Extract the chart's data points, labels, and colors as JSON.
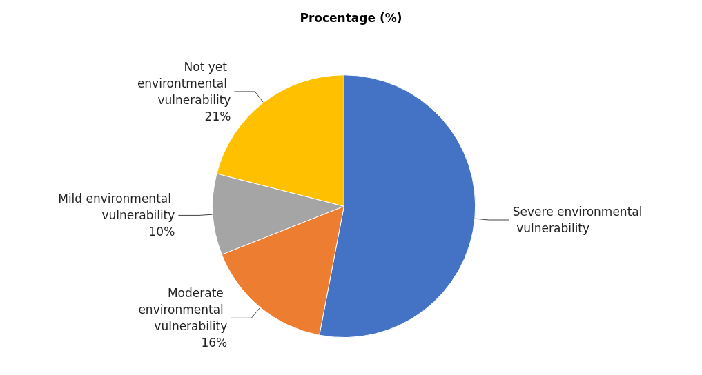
{
  "chart_data": {
    "type": "pie",
    "title": "Procentage (%)",
    "categories": [
      "Severe environmental vulnerability",
      "Moderate environmental vulnerability",
      "Mild environmental vulnerability",
      "Not yet environtmental vulnerability"
    ],
    "values": [
      53,
      16,
      10,
      21
    ],
    "value_labels": [
      null,
      "16%",
      "10%",
      "21%"
    ],
    "colors": [
      "#4472c4",
      "#ed7d31",
      "#a5a5a5",
      "#ffc000"
    ],
    "legend": false
  }
}
